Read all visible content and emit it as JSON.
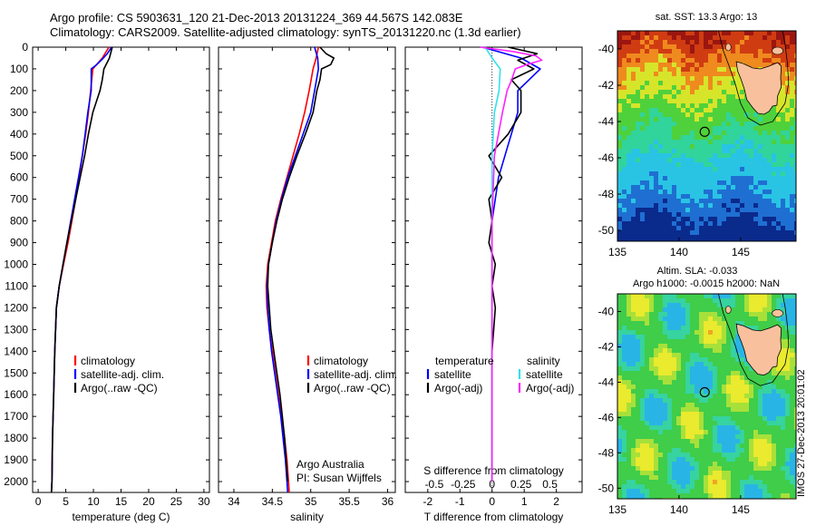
{
  "header": {
    "line1": "Argo profile: CS 5903631_120 21-Dec-2013 20131224_369 44.567S 142.083E",
    "line2": "Climatology: CARS2009. Satellite-adjusted climatology: synTS_20131220.nc (1.3d earlier)"
  },
  "colors": {
    "climatology": "#ff0000",
    "satellite_clim": "#0000ff",
    "argo": "#000000",
    "sat_S": "#33e0ee",
    "argo_S": "#ff22ff"
  },
  "chart_data": [
    {
      "type": "line",
      "id": "temperature",
      "xlabel": "temperature (deg C)",
      "ylabel": "",
      "xlim": [
        -1,
        31
      ],
      "ylim": [
        2050,
        0
      ],
      "xticks": [
        0,
        5,
        10,
        15,
        20,
        25,
        30
      ],
      "yticks": [
        0,
        100,
        200,
        300,
        400,
        500,
        600,
        700,
        800,
        900,
        1000,
        1100,
        1200,
        1300,
        1400,
        1500,
        1600,
        1700,
        1800,
        1900,
        2000
      ],
      "legend": [
        "climatology",
        "satellite-adj. clim.",
        "Argo(..raw -QC)"
      ],
      "series": [
        {
          "name": "climatology",
          "depth": [
            0,
            50,
            100,
            200,
            300,
            400,
            500,
            600,
            700,
            800,
            900,
            1000,
            1100,
            1200,
            1400,
            1600,
            1800,
            2000,
            2050
          ],
          "values": [
            12.8,
            11.6,
            9.9,
            9.5,
            9.1,
            8.6,
            8.0,
            7.4,
            6.8,
            6.1,
            5.4,
            4.6,
            3.8,
            3.3,
            3.0,
            2.8,
            2.6,
            2.5,
            2.4
          ]
        },
        {
          "name": "satellite-adj. clim.",
          "depth": [
            0,
            30,
            50,
            80,
            100,
            200,
            300,
            400,
            500,
            600,
            700,
            800,
            900,
            1000,
            1100,
            1200,
            1400,
            1600,
            1800,
            2000,
            2050
          ],
          "values": [
            13.3,
            12.5,
            11.8,
            10.6,
            9.6,
            9.6,
            9.0,
            8.5,
            8.0,
            7.3,
            6.6,
            5.9,
            5.2,
            4.5,
            3.8,
            3.3,
            3.0,
            2.8,
            2.6,
            2.5,
            2.4
          ]
        },
        {
          "name": "Argo(..raw -QC)",
          "depth": [
            0,
            50,
            100,
            150,
            200,
            300,
            400,
            500,
            600,
            700,
            800,
            900,
            1000,
            1100,
            1200,
            1400,
            1600,
            1800,
            2000,
            2050
          ],
          "values": [
            13.4,
            12.9,
            11.9,
            11.6,
            11.2,
            9.9,
            9.1,
            8.4,
            7.6,
            6.8,
            6.0,
            5.2,
            4.5,
            3.8,
            3.3,
            3.0,
            2.8,
            2.6,
            2.5,
            2.4
          ]
        }
      ]
    },
    {
      "type": "line",
      "id": "salinity",
      "xlabel": "salinity",
      "ylabel": "",
      "xlim": [
        33.8,
        36.1
      ],
      "ylim": [
        2050,
        0
      ],
      "xticks": [
        34,
        34.5,
        35,
        35.5,
        36
      ],
      "xticklabels": [
        "34",
        "34.5",
        "35",
        "35.5",
        "36"
      ],
      "legend": [
        "climatology",
        "satellite-adj. clim.",
        "Argo(..raw -QC)"
      ],
      "annotation": [
        "Argo Australia",
        "PI: Susan Wijffels"
      ],
      "series": [
        {
          "name": "climatology",
          "depth": [
            0,
            50,
            100,
            200,
            300,
            400,
            500,
            600,
            700,
            800,
            900,
            1000,
            1100,
            1200,
            1300,
            1400,
            1500,
            1600,
            1700,
            1800,
            1900,
            2000,
            2050
          ],
          "values": [
            35.1,
            35.07,
            35.03,
            34.98,
            34.92,
            34.85,
            34.77,
            34.69,
            34.61,
            34.54,
            34.49,
            34.44,
            34.42,
            34.43,
            34.46,
            34.5,
            34.54,
            34.58,
            34.62,
            34.66,
            34.69,
            34.71,
            34.72
          ]
        },
        {
          "name": "satellite-adj. clim.",
          "depth": [
            0,
            50,
            100,
            200,
            300,
            400,
            500,
            600,
            700,
            800,
            900,
            1000,
            1100,
            1200,
            1300,
            1400,
            1500,
            1600,
            1700,
            1800,
            1900,
            2000,
            2050
          ],
          "values": [
            35.05,
            35.09,
            35.1,
            35.05,
            35.0,
            34.9,
            34.8,
            34.7,
            34.62,
            34.55,
            34.5,
            34.45,
            34.43,
            34.44,
            34.46,
            34.49,
            34.53,
            34.57,
            34.61,
            34.64,
            34.67,
            34.69,
            34.7
          ]
        },
        {
          "name": "Argo(..raw -QC)",
          "depth": [
            0,
            30,
            50,
            80,
            100,
            150,
            200,
            300,
            400,
            500,
            600,
            700,
            800,
            900,
            1000,
            1100,
            1200,
            1300,
            1400,
            1500,
            1600,
            1700,
            1800,
            1900,
            2000
          ],
          "values": [
            35.12,
            35.2,
            35.3,
            35.26,
            35.14,
            35.12,
            35.08,
            35.03,
            34.93,
            34.82,
            34.72,
            34.63,
            34.56,
            34.5,
            34.45,
            34.44,
            34.46,
            34.48,
            34.52,
            34.56,
            34.6,
            34.63,
            34.66,
            34.68,
            34.7
          ]
        }
      ]
    },
    {
      "type": "line",
      "id": "difference",
      "xlabel": "T difference from climatology",
      "xlabel_top": "S difference from climatology",
      "xlim": [
        -2.7,
        2.8
      ],
      "ylim": [
        2050,
        0
      ],
      "xticks": [
        -2,
        -1,
        0,
        1,
        2
      ],
      "xticks_top": [
        -0.5,
        -0.25,
        0,
        0.25,
        0.5
      ],
      "xticklabels_top": [
        "-0.5",
        "-0.25",
        "0",
        "0.25",
        "0.5"
      ],
      "legend_temperature_title": "temperature",
      "legend_salinity_title": "salinity",
      "legend": [
        "satellite",
        "Argo(-adj)",
        "satellite",
        "Argo(-adj)"
      ],
      "series": [
        {
          "name": "satellite",
          "depth": [
            0,
            50,
            100,
            200,
            300,
            400,
            600,
            800,
            1000,
            1200,
            1400,
            1600,
            1800,
            2000
          ],
          "values": [
            -0.3,
            0.9,
            1.5,
            0.8,
            0.8,
            0.6,
            0.2,
            0.0,
            0.0,
            0.0,
            0.0,
            0.0,
            0.0,
            0.0
          ]
        },
        {
          "name": "Argo(-adj)",
          "depth": [
            0,
            30,
            60,
            100,
            150,
            200,
            300,
            400,
            500,
            600,
            700,
            800,
            900,
            1000,
            1100,
            1200,
            1400,
            1600,
            1800,
            2000
          ],
          "values": [
            0.5,
            1.4,
            0.8,
            1.3,
            0.6,
            0.9,
            0.9,
            0.5,
            -0.1,
            0.3,
            -0.1,
            0.0,
            -0.1,
            0.1,
            0.0,
            0.1,
            0.0,
            0.0,
            0.0,
            0.0
          ]
        },
        {
          "name": "satellite",
          "depth": [
            0,
            50,
            100,
            200,
            300,
            500,
            800,
            1000,
            1200,
            1500,
            1800,
            2000
          ],
          "values": [
            -0.06,
            0.0,
            0.07,
            0.06,
            0.02,
            0.0,
            0.0,
            0.0,
            0.0,
            0.0,
            0.0,
            0.0
          ]
        },
        {
          "name": "Argo(-adj)",
          "depth": [
            0,
            20,
            40,
            60,
            80,
            100,
            150,
            200,
            250,
            300,
            500,
            800,
            1000,
            1300,
            1600,
            1800,
            2000
          ],
          "values": [
            -0.1,
            0.18,
            0.38,
            0.43,
            0.3,
            0.2,
            0.17,
            0.13,
            0.11,
            0.09,
            0.02,
            0.0,
            0.0,
            0.0,
            0.0,
            0.0,
            0.0
          ]
        }
      ]
    },
    {
      "type": "heatmap",
      "id": "sst_map",
      "title": "sat. SST: 13.3 Argo: 13",
      "xlim": [
        135,
        149.5
      ],
      "ylim": [
        -50.6,
        -39
      ],
      "xticks": [
        135,
        140,
        145
      ],
      "yticks": [
        -40,
        -42,
        -44,
        -46,
        -48,
        -50
      ],
      "argo_position": [
        142.083,
        -44.567
      ]
    },
    {
      "type": "heatmap",
      "id": "sla_map",
      "title": "Altim. SLA: -0.033",
      "subtitle": "Argo h1000: -0.0015 h2000: NaN",
      "xlim": [
        135,
        149.5
      ],
      "ylim": [
        -50.6,
        -39
      ],
      "xticks": [
        135,
        140,
        145
      ],
      "yticks": [
        -40,
        -42,
        -44,
        -46,
        -48,
        -50
      ],
      "argo_position": [
        142.083,
        -44.567
      ]
    }
  ],
  "stamp": "IMOS 27-Dec-2013 20:01:02"
}
